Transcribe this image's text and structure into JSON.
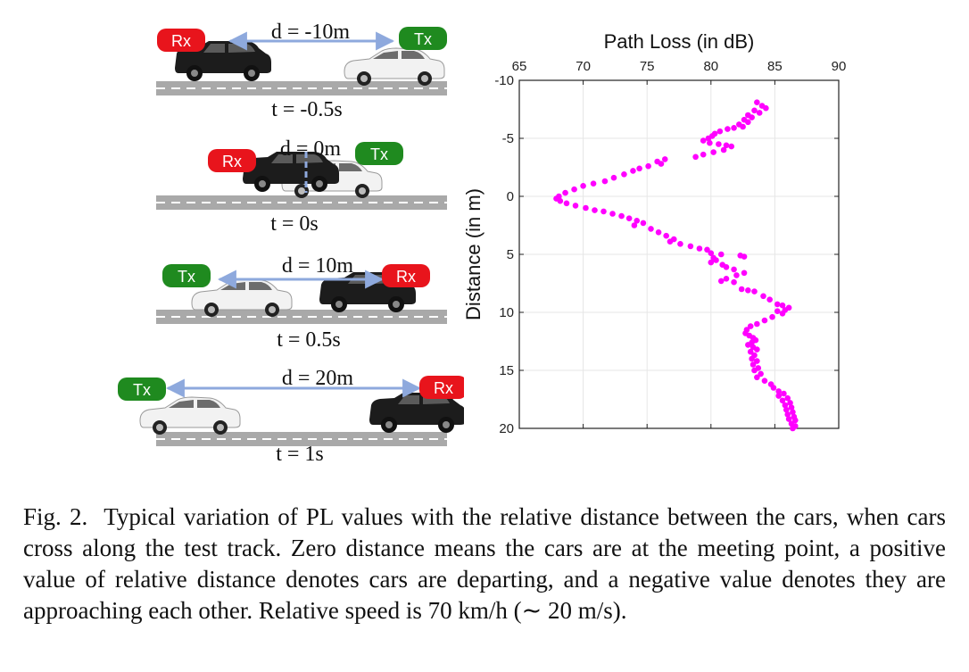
{
  "scenarios": [
    {
      "d_label": "d = -10m",
      "t_label": "t = -0.5s",
      "left_tag": "Rx",
      "right_tag": "Tx"
    },
    {
      "d_label": "d = 0m",
      "t_label": "t = 0s",
      "left_tag": "Rx",
      "right_tag": "Tx"
    },
    {
      "d_label": "d = 10m",
      "t_label": "t = 0.5s",
      "left_tag": "Tx",
      "right_tag": "Rx"
    },
    {
      "d_label": "d = 20m",
      "t_label": "t = 1s",
      "left_tag": "Tx",
      "right_tag": "Rx"
    }
  ],
  "colors": {
    "rx": "#e8141c",
    "tx": "#1f8a1f",
    "arrow": "#8ea9dd",
    "marker": "#ff00ff",
    "road": "#a9a9a9"
  },
  "chart_data": {
    "type": "scatter",
    "title": "Path Loss (in dB)",
    "xlabel": "Path Loss (in dB)",
    "ylabel": "Distance (in m)",
    "xlim": [
      65,
      90
    ],
    "ylim": [
      -10,
      20
    ],
    "y_reversed": true,
    "x_axis_position": "top",
    "xticks": [
      65,
      70,
      75,
      80,
      85,
      90
    ],
    "yticks": [
      -10,
      -5,
      0,
      5,
      10,
      15,
      20
    ],
    "grid": true,
    "series": [
      {
        "name": "PL",
        "color": "#ff00ff",
        "points": [
          [
            83.6,
            -8.1
          ],
          [
            84.0,
            -7.8
          ],
          [
            84.3,
            -7.6
          ],
          [
            83.4,
            -7.4
          ],
          [
            83.8,
            -7.2
          ],
          [
            82.9,
            -7.0
          ],
          [
            83.2,
            -6.8
          ],
          [
            82.6,
            -6.6
          ],
          [
            82.9,
            -6.4
          ],
          [
            82.2,
            -6.2
          ],
          [
            82.5,
            -6.0
          ],
          [
            81.8,
            -5.9
          ],
          [
            81.3,
            -5.8
          ],
          [
            80.7,
            -5.6
          ],
          [
            80.3,
            -5.4
          ],
          [
            80.1,
            -5.2
          ],
          [
            79.8,
            -5.0
          ],
          [
            79.4,
            -4.8
          ],
          [
            79.9,
            -4.6
          ],
          [
            80.6,
            -4.5
          ],
          [
            81.2,
            -4.4
          ],
          [
            81.6,
            -4.3
          ],
          [
            81.0,
            -4.0
          ],
          [
            80.2,
            -3.8
          ],
          [
            79.4,
            -3.6
          ],
          [
            78.8,
            -3.4
          ],
          [
            76.4,
            -3.2
          ],
          [
            75.8,
            -3.0
          ],
          [
            76.1,
            -2.8
          ],
          [
            75.1,
            -2.6
          ],
          [
            74.4,
            -2.4
          ],
          [
            73.9,
            -2.2
          ],
          [
            73.2,
            -1.9
          ],
          [
            72.4,
            -1.6
          ],
          [
            71.7,
            -1.3
          ],
          [
            70.8,
            -1.1
          ],
          [
            70.0,
            -0.9
          ],
          [
            69.3,
            -0.6
          ],
          [
            68.6,
            -0.3
          ],
          [
            68.1,
            0.0
          ],
          [
            67.9,
            0.2
          ],
          [
            68.2,
            0.4
          ],
          [
            68.7,
            0.6
          ],
          [
            69.4,
            0.8
          ],
          [
            70.2,
            1.0
          ],
          [
            70.9,
            1.2
          ],
          [
            71.6,
            1.3
          ],
          [
            72.3,
            1.5
          ],
          [
            73.0,
            1.7
          ],
          [
            73.6,
            1.9
          ],
          [
            74.2,
            2.1
          ],
          [
            74.7,
            2.3
          ],
          [
            74.0,
            2.5
          ],
          [
            75.3,
            2.8
          ],
          [
            75.9,
            3.1
          ],
          [
            76.5,
            3.4
          ],
          [
            77.1,
            3.7
          ],
          [
            76.8,
            3.9
          ],
          [
            77.6,
            4.1
          ],
          [
            78.4,
            4.3
          ],
          [
            79.1,
            4.5
          ],
          [
            79.7,
            4.6
          ],
          [
            80.0,
            4.9
          ],
          [
            80.8,
            5.0
          ],
          [
            80.2,
            5.3
          ],
          [
            80.4,
            5.5
          ],
          [
            80.0,
            5.7
          ],
          [
            80.9,
            5.9
          ],
          [
            82.3,
            5.1
          ],
          [
            82.6,
            5.2
          ],
          [
            81.2,
            6.1
          ],
          [
            81.8,
            6.3
          ],
          [
            82.6,
            6.6
          ],
          [
            82.0,
            6.8
          ],
          [
            81.2,
            7.1
          ],
          [
            80.8,
            7.3
          ],
          [
            81.8,
            7.4
          ],
          [
            82.4,
            8.0
          ],
          [
            82.9,
            8.1
          ],
          [
            83.4,
            8.2
          ],
          [
            84.1,
            8.6
          ],
          [
            84.6,
            8.9
          ],
          [
            85.2,
            9.3
          ],
          [
            85.6,
            9.4
          ],
          [
            86.1,
            9.6
          ],
          [
            85.8,
            9.8
          ],
          [
            85.2,
            9.9
          ],
          [
            85.6,
            10.1
          ],
          [
            84.8,
            10.4
          ],
          [
            84.2,
            10.7
          ],
          [
            83.6,
            11.0
          ],
          [
            83.1,
            11.2
          ],
          [
            82.8,
            11.5
          ],
          [
            82.7,
            11.8
          ],
          [
            83.0,
            12.0
          ],
          [
            83.3,
            12.2
          ],
          [
            83.5,
            12.4
          ],
          [
            83.2,
            12.6
          ],
          [
            82.9,
            12.8
          ],
          [
            83.3,
            13.0
          ],
          [
            83.6,
            13.2
          ],
          [
            83.1,
            13.4
          ],
          [
            83.4,
            13.7
          ],
          [
            83.2,
            14.0
          ],
          [
            83.6,
            14.2
          ],
          [
            83.3,
            14.5
          ],
          [
            83.7,
            14.8
          ],
          [
            83.4,
            15.0
          ],
          [
            83.9,
            15.3
          ],
          [
            83.6,
            15.6
          ],
          [
            84.2,
            15.9
          ],
          [
            84.7,
            16.2
          ],
          [
            84.9,
            16.5
          ],
          [
            85.3,
            16.8
          ],
          [
            85.7,
            17.0
          ],
          [
            85.3,
            17.2
          ],
          [
            86.0,
            17.4
          ],
          [
            85.6,
            17.6
          ],
          [
            86.2,
            17.8
          ],
          [
            85.8,
            18.0
          ],
          [
            86.3,
            18.2
          ],
          [
            85.9,
            18.4
          ],
          [
            86.4,
            18.6
          ],
          [
            86.0,
            18.8
          ],
          [
            86.5,
            19.0
          ],
          [
            86.1,
            19.2
          ],
          [
            86.6,
            19.3
          ],
          [
            86.3,
            19.6
          ],
          [
            86.6,
            19.8
          ],
          [
            86.4,
            20.0
          ]
        ]
      }
    ]
  },
  "caption": {
    "label": "Fig. 2.",
    "text": "Typical variation of PL values with the relative distance between the cars, when cars cross along the test track. Zero distance means the cars are at the meeting point, a positive value of relative distance denotes cars are departing, and a negative value denotes they are approaching each other. Relative speed is 70 km/h (∼ 20 m/s)."
  }
}
